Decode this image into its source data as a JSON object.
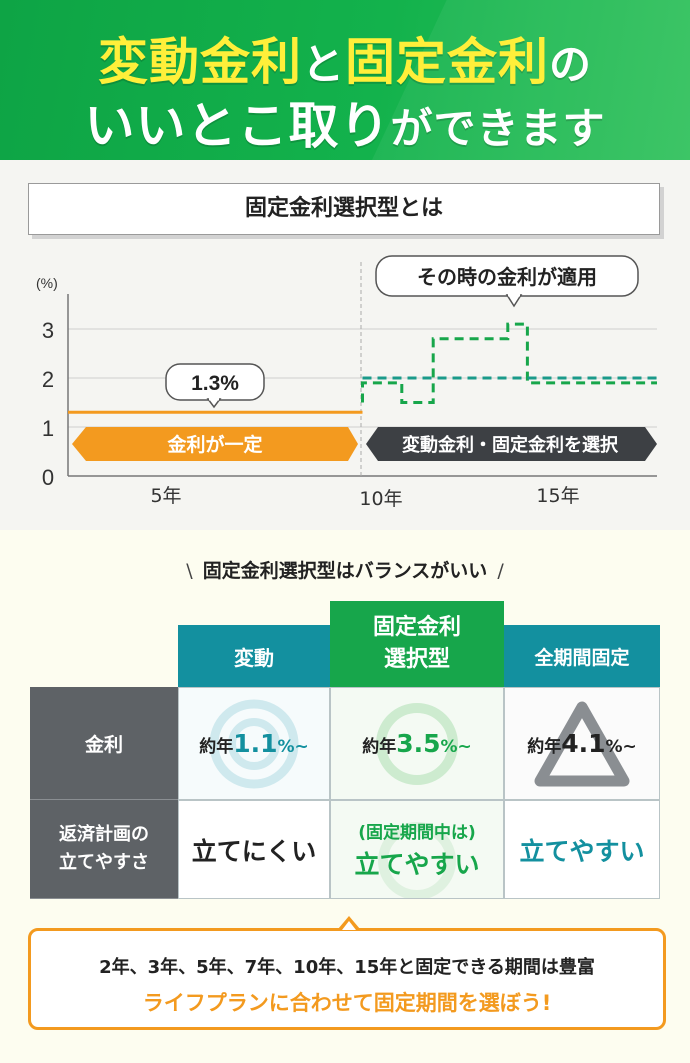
{
  "header": {
    "line1_part1": "変動金利",
    "line1_part2": "と",
    "line1_part3": "固定金利",
    "line1_part4": "の",
    "line2_part1": "いいとこ取り",
    "line2_part2": "ができます"
  },
  "chart": {
    "title": "固定金利選択型とは",
    "y_unit": "(%)",
    "y_ticks": [
      "0",
      "1",
      "2",
      "3"
    ],
    "x_ticks": [
      "5年",
      "10年",
      "15年"
    ],
    "fixed_bubble": "1.3%",
    "variable_bubble": "その時の金利が適用",
    "arrow_left": "金利が一定",
    "arrow_right": "変動金利・固定金利を選択"
  },
  "chart_data": {
    "type": "line",
    "xlabel": "",
    "ylabel": "(%)",
    "ylim": [
      0,
      3.5
    ],
    "xlim": [
      2.5,
      17.5
    ],
    "x_ticks": [
      5,
      10,
      15
    ],
    "series": [
      {
        "x": [
          2.5,
          10
        ],
        "y": [
          1.3,
          1.3
        ],
        "color": "#f39a1f",
        "style": "solid"
      },
      {
        "x": [
          10,
          10,
          11,
          11,
          11.8,
          11.8,
          13.7,
          13.7,
          14.2,
          14.2,
          17.5
        ],
        "y": [
          1.5,
          1.9,
          1.9,
          1.5,
          1.5,
          2.8,
          2.8,
          3.1,
          3.1,
          1.9,
          1.9
        ],
        "color": "#17a64b",
        "style": "dashed"
      },
      {
        "x": [
          10,
          17.5
        ],
        "y": [
          2.0,
          2.0
        ],
        "color": "#1a9a8a",
        "style": "dashed"
      }
    ],
    "grid": true
  },
  "balance_heading": "固定金利選択型はバランスがいい",
  "table": {
    "columns": {
      "variable": "変動",
      "selection_line1": "固定金利",
      "selection_line2": "選択型",
      "fixed": "全期間固定"
    },
    "rows": {
      "rate_label": "金利",
      "plan_label_line1": "返済計画の",
      "plan_label_line2": "立てやすさ"
    },
    "rates": {
      "prefix": "約年",
      "variable": "1.1",
      "selection": "3.5",
      "fixed": "4.1",
      "suffix": "%~"
    },
    "ease": {
      "variable": "立てにくい",
      "selection_sub": "(固定期間中は)",
      "selection": "立てやすい",
      "fixed": "立てやすい"
    },
    "colors": {
      "teal": "#13909f",
      "green": "#17a64b",
      "gray": "#5e6266"
    }
  },
  "note": {
    "line1": "2年、3年、5年、7年、10年、15年と固定できる期間は豊富",
    "line2": "ライフプランに合わせて固定期間を選ぼう!"
  }
}
